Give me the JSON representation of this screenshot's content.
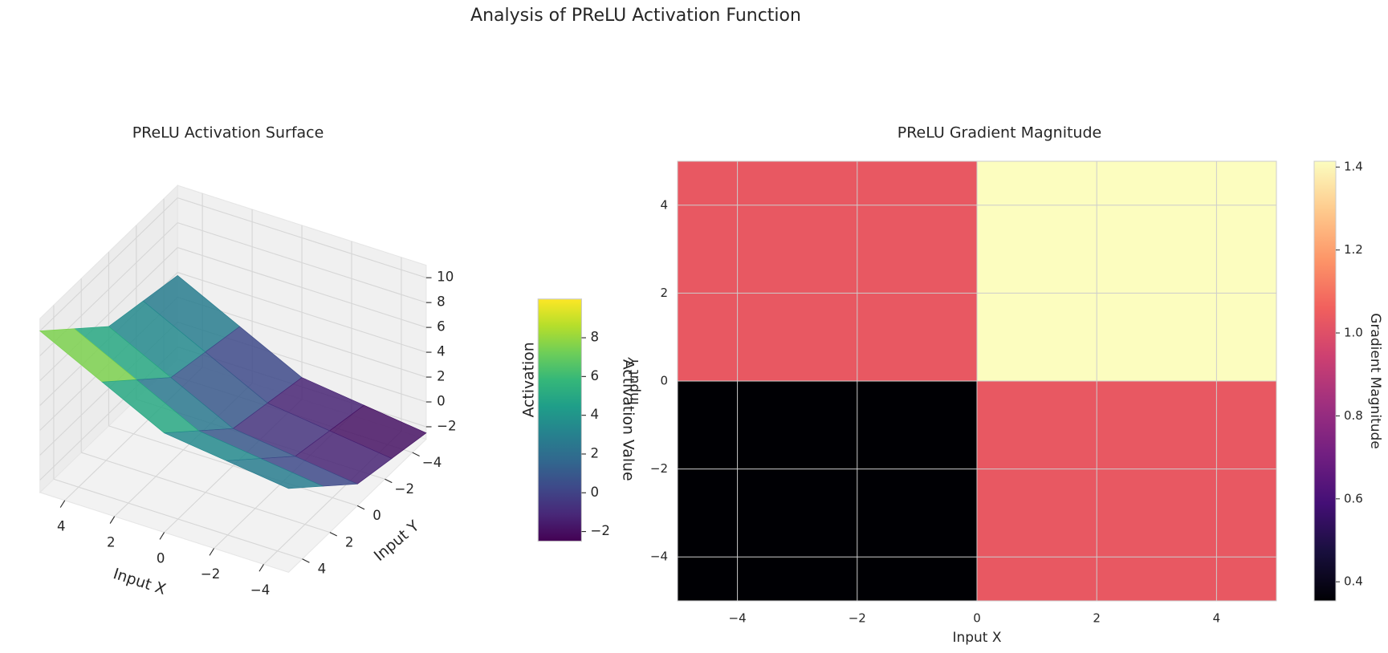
{
  "title": "Analysis of PReLU Activation Function",
  "chart_data": [
    {
      "type": "surface",
      "title": "PReLU Activation Surface",
      "x_label": "Input X",
      "y_label": "Input Y",
      "z_label": "Activation",
      "x": [
        -5,
        -2.5,
        0,
        2.5,
        5
      ],
      "y": [
        -5,
        -2.5,
        0,
        2.5,
        5
      ],
      "z": [
        [
          -2.5,
          -1.875,
          -1.25,
          1.25,
          3.75
        ],
        [
          -1.875,
          -1.25,
          -0.625,
          1.875,
          4.375
        ],
        [
          -1.25,
          -0.625,
          0,
          2.5,
          5
        ],
        [
          1.25,
          1.875,
          2.5,
          5,
          7.5
        ],
        [
          3.75,
          4.375,
          5,
          7.5,
          10
        ]
      ],
      "xlim": [
        -5,
        5
      ],
      "ylim": [
        -5,
        5
      ],
      "zlim": [
        -3,
        11
      ],
      "xticks": [
        {
          "value": -4,
          "label": "−4"
        },
        {
          "value": -2,
          "label": "−2"
        },
        0,
        2,
        4
      ],
      "yticks": [
        {
          "value": -4,
          "label": "−4"
        },
        {
          "value": -2,
          "label": "−2"
        },
        0,
        2,
        4
      ],
      "zticks": [
        {
          "value": -2,
          "label": "−2"
        },
        0,
        2,
        4,
        6,
        8,
        10
      ],
      "colormap": "viridis",
      "grid": true,
      "colorbar": {
        "label": "Activation Value",
        "lim": [
          -2.5,
          10
        ],
        "ticks": [
          {
            "value": -2,
            "label": "−2"
          },
          0,
          2,
          4,
          6,
          8
        ]
      }
    },
    {
      "type": "heatmap",
      "title": "PReLU Gradient Magnitude",
      "x_label": "Input X",
      "y_label": "Input Y",
      "x_edges": [
        -5,
        0,
        5
      ],
      "y_edges": [
        -5,
        0,
        5
      ],
      "z": [
        [
          0.354,
          1.031
        ],
        [
          1.031,
          1.414
        ]
      ],
      "xlim": [
        -5,
        5
      ],
      "ylim": [
        -5,
        5
      ],
      "xticks": [
        {
          "value": -4,
          "label": "−4"
        },
        {
          "value": -2,
          "label": "−2"
        },
        0,
        2,
        4
      ],
      "yticks": [
        {
          "value": -4,
          "label": "−4"
        },
        {
          "value": -2,
          "label": "−2"
        },
        0,
        2,
        4
      ],
      "colormap": "magma",
      "grid": true,
      "colorbar": {
        "label": "Gradient Magnitude",
        "lim": [
          0.354,
          1.414
        ],
        "ticks": [
          0.4,
          0.6,
          0.8,
          {
            "value": 1,
            "label": "1.0"
          },
          1.2,
          1.4
        ]
      }
    }
  ]
}
